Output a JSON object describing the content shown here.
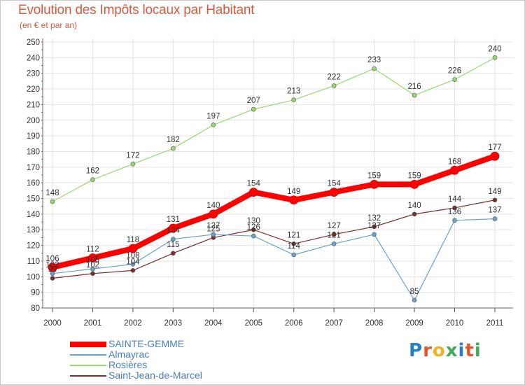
{
  "chart_data": {
    "type": "line",
    "title": "Evolution des Impôts locaux par Habitant",
    "subtitle": "(en € et par an)",
    "xlabel": "",
    "ylabel": "",
    "x": [
      "2000",
      "2001",
      "2002",
      "2003",
      "2004",
      "2005",
      "2006",
      "2007",
      "2008",
      "2009",
      "2010",
      "2011"
    ],
    "ylim": [
      80,
      250
    ],
    "yticks": [
      80,
      90,
      100,
      110,
      120,
      130,
      140,
      150,
      160,
      170,
      180,
      190,
      200,
      210,
      220,
      230,
      240,
      250
    ],
    "grid": true,
    "legend_position": "bottom-left",
    "series": [
      {
        "name": "SAINTE-GEMME",
        "color": "#ff0000",
        "values": [
          106,
          112,
          118,
          131,
          140,
          154,
          149,
          154,
          159,
          159,
          168,
          177
        ],
        "emphasis": "thick"
      },
      {
        "name": "Almayrac",
        "color": "#6aa2cc",
        "values": [
          102,
          105,
          108,
          124,
          127,
          126,
          114,
          121,
          127,
          85,
          136,
          137
        ]
      },
      {
        "name": "Rosières",
        "color": "#99d870",
        "values": [
          148,
          162,
          172,
          182,
          197,
          207,
          213,
          222,
          233,
          216,
          226,
          240
        ]
      },
      {
        "name": "Saint-Jean-de-Marcel",
        "color": "#7a2e2e",
        "values": [
          99,
          102,
          104,
          115,
          125,
          130,
          121,
          127,
          132,
          140,
          144,
          149
        ]
      }
    ]
  },
  "logo": {
    "letters": [
      "P",
      "r",
      "o",
      "x",
      "i",
      "t",
      "i"
    ]
  }
}
